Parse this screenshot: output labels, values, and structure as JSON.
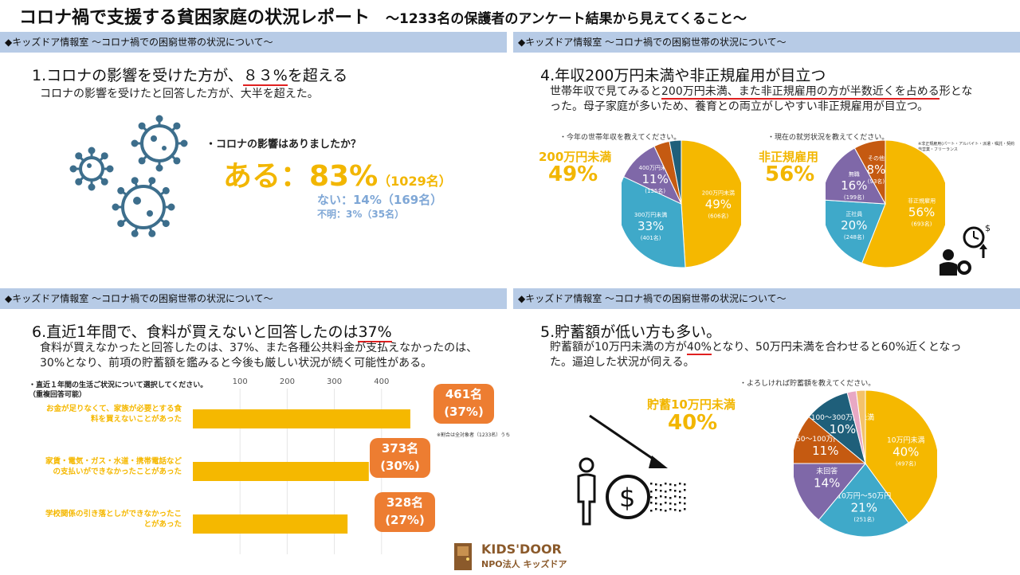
{
  "header": {
    "title": "コロナ禍で支援する貧困家庭の状況レポート",
    "subtitle": "～1233名の保護者のアンケート結果から見えてくること～"
  },
  "band_label": "◆キッズドア情報室 ～コロナ禍での困窮世帯の状況について～",
  "panel1": {
    "heading_pre": "1.コロナの影響を受けた方が、",
    "heading_hl": "８３%",
    "heading_post": "を超える",
    "body": "コロナの影響を受けたと回答した方が、大半を超えた。",
    "question": "・コロナの影響はありましたか？",
    "yes_label": "ある：83%",
    "yes_count": "（1029名）",
    "no_label": "ない：14%（169名）",
    "unknown_label": "不明：3%（35名）"
  },
  "panel4": {
    "heading": "4.年収200万円未満や非正規雇用が目立つ",
    "body_pre": "世帯年収で見てみると",
    "body_hl": "200万円未満、また非正規雇用の方が半数近くを占める",
    "body_post": "形となった。母子家庭が多いため、養育との両立がしやすい非正規雇用が目立つ。",
    "income_q": "・今年の世帯年収を教えてください。",
    "income_big_label": "200万円未満",
    "income_big_pct": "49%",
    "employment_q": "・現在の就労状況を教えてください。",
    "employment_big_label": "非正規雇用",
    "employment_big_pct": "56%",
    "employment_note1": "※非正規雇用(パート・アルバイト・派遣・嘱託・契約",
    "employment_note2": "自営業・フリーランス"
  },
  "panel6": {
    "heading_pre": "6.直近1年間で、食料が買えないと回答したのは",
    "heading_hl": "37%",
    "body": "食料が買えなかったと回答したのは、37%、また各種公共料金が支払えなかったのは、30%となり、前項の貯蓄額を鑑みると今後も厳しい状況が続く可能性がある。",
    "chart_q1": "・直近１年間の生活ご状況について選択してください。",
    "chart_q2": "（重複回答可能）",
    "note": "※割合は全対象者（1233名）うち"
  },
  "panel5": {
    "heading": "5.貯蓄額が低い方も多い。",
    "body_pre": "貯蓄額が10万円未満の方が",
    "body_hl": "40%",
    "body_post": "となり、50万円未満を合わせると60%近くとなった。逼迫した状況が伺える。",
    "savings_q": "・よろしければ貯蓄額を教えてください。",
    "savings_big_label": "貯蓄10万円未満",
    "savings_big_pct": "40%"
  },
  "footer": {
    "logo_text": "KIDS'DOOR",
    "org": "NPO法人 キッズドア"
  },
  "colors": {
    "yellow": "#f5b800",
    "blue": "#3fa9c9",
    "purple": "#7f68a8",
    "brown": "#c55a11",
    "teal": "#1f5f7a",
    "orange": "#ed7d31",
    "lightblue": "#7fa7d6",
    "icon": "#3d6e8c",
    "band": "#b7cbe6"
  },
  "chart_data": [
    {
      "type": "pie",
      "slices": [
        {
          "name": "200万円未満",
          "value": 49,
          "count": "(606名)"
        },
        {
          "name": "300万円未満",
          "value": 33,
          "count": "(401名)"
        },
        {
          "name": "400万円未満",
          "value": 11,
          "count": "(135名)"
        },
        {
          "name": "",
          "value": 4,
          "count": ""
        },
        {
          "name": "",
          "value": 3,
          "count": ""
        }
      ]
    },
    {
      "type": "pie",
      "slices": [
        {
          "name": "非正規雇用",
          "value": 56,
          "count": "(693名)"
        },
        {
          "name": "正社員",
          "value": 20,
          "count": "(248名)"
        },
        {
          "name": "無職",
          "value": 16,
          "count": "(199名)"
        },
        {
          "name": "その他",
          "value": 8,
          "count": "(93名)"
        }
      ]
    },
    {
      "type": "bar",
      "orientation": "horizontal",
      "x_ticks": [
        "100",
        "200",
        "300",
        "400"
      ],
      "xlim": [
        0,
        500
      ],
      "categories": [
        "お金が足りなくて、家族が必要とする食料を買えないことがあった",
        "家賃・電気・ガス・水道・携帯電話などの支払いができなかったことがあった",
        "学校関係の引き落としができなかったことがあった"
      ],
      "values": [
        461,
        373,
        328
      ],
      "labels": [
        "461名",
        "373名",
        "328名"
      ],
      "percents": [
        "(37%)",
        "(30%)",
        "(27%)"
      ]
    },
    {
      "type": "pie",
      "slices": [
        {
          "name": "10万円未満",
          "value": 40,
          "count": "(497名)"
        },
        {
          "name": "10万円～50万円",
          "value": 21,
          "count": "(251名)"
        },
        {
          "name": "未回答",
          "value": 14,
          "count": ""
        },
        {
          "name": "50～100万円未満",
          "value": 11,
          "count": ""
        },
        {
          "name": "100～300万円未満",
          "value": 10,
          "count": ""
        },
        {
          "name": "",
          "value": 2,
          "count": ""
        },
        {
          "name": "",
          "value": 2,
          "count": ""
        }
      ]
    }
  ]
}
